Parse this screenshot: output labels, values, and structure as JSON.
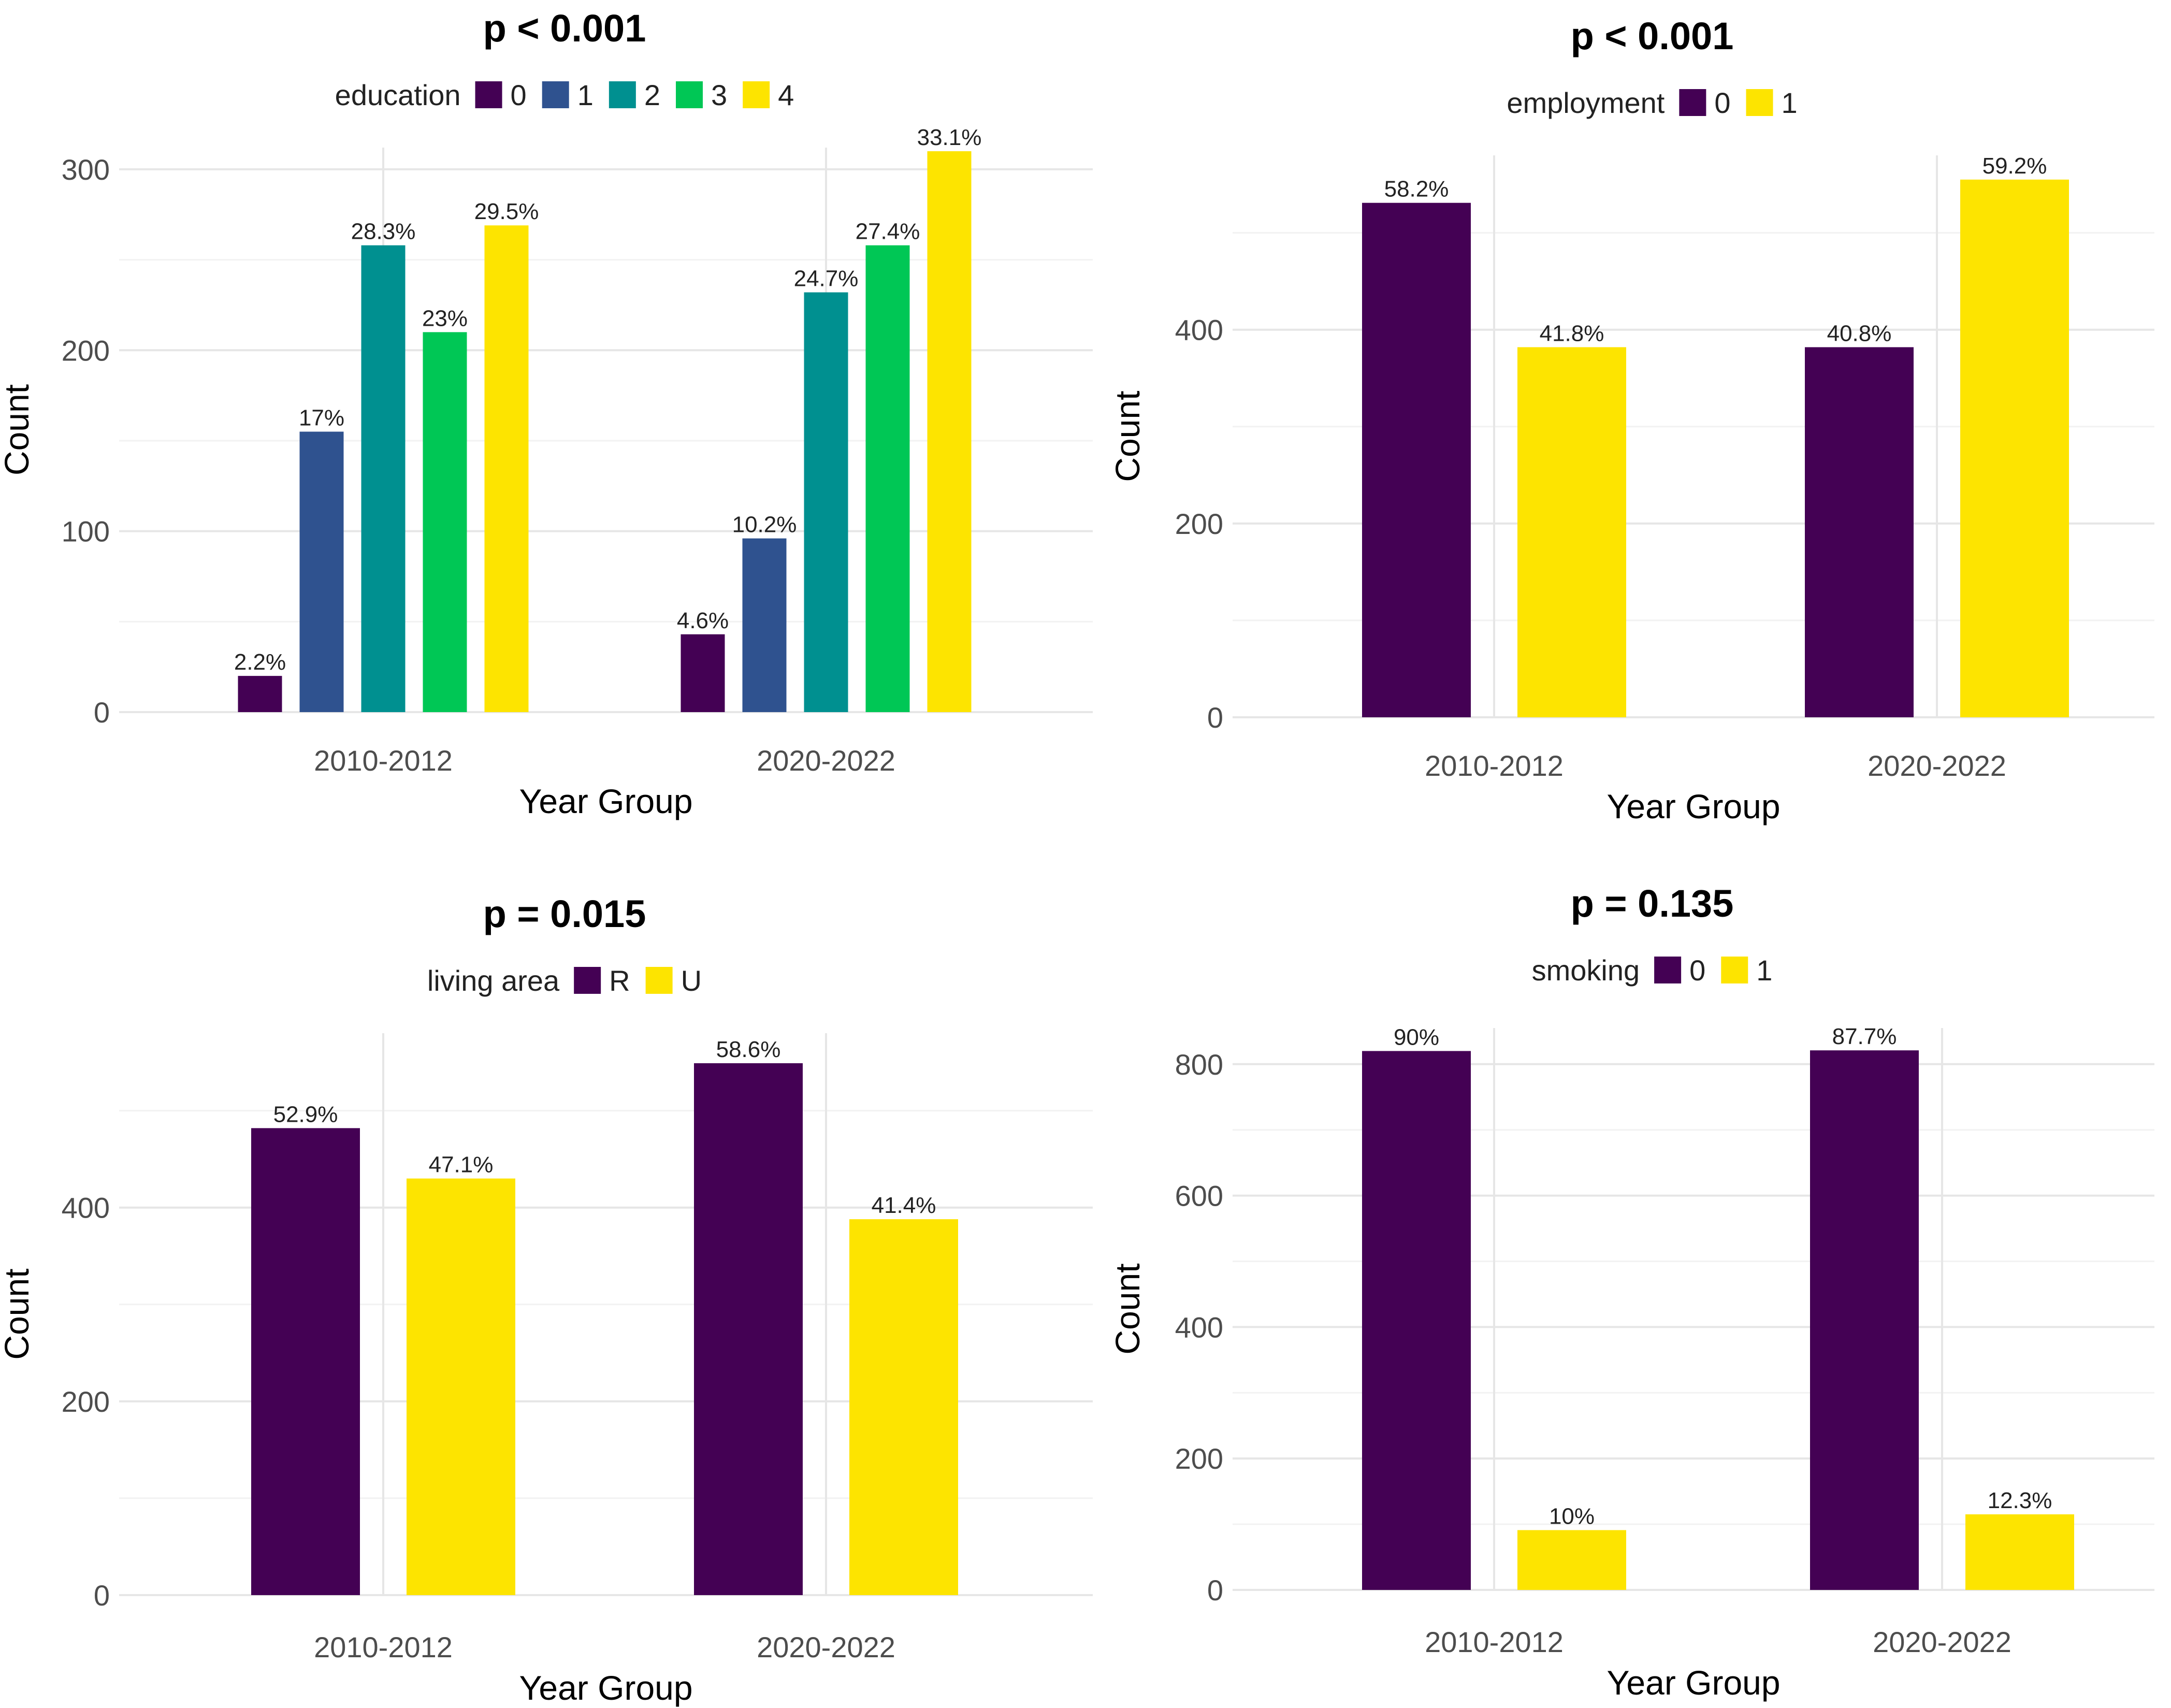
{
  "chart_data": [
    {
      "type": "bar",
      "title": "p < 0.001",
      "legend_title": "education",
      "legend_position": "top",
      "xlabel": "Year Group",
      "ylabel": "Count",
      "categories": [
        "2010-2012",
        "2020-2022"
      ],
      "ylim": [
        0,
        312
      ],
      "yticks": [
        0,
        100,
        200,
        300
      ],
      "grid": true,
      "series": [
        {
          "name": "0",
          "color": "#440154",
          "values": [
            20,
            43
          ],
          "labels": [
            "2.2%",
            "4.6%"
          ]
        },
        {
          "name": "1",
          "color": "#2f528f",
          "values": [
            155,
            96
          ],
          "labels": [
            "17%",
            "10.2%"
          ]
        },
        {
          "name": "2",
          "color": "#009090",
          "values": [
            258,
            232
          ],
          "labels": [
            "28.3%",
            "24.7%"
          ]
        },
        {
          "name": "3",
          "color": "#00c755",
          "values": [
            210,
            258
          ],
          "labels": [
            "23%",
            "27.4%"
          ]
        },
        {
          "name": "4",
          "color": "#fde400",
          "values": [
            269,
            310
          ],
          "labels": [
            "29.5%",
            "33.1%"
          ]
        }
      ]
    },
    {
      "type": "bar",
      "title": "p < 0.001",
      "legend_title": "employment",
      "legend_position": "top",
      "xlabel": "Year Group",
      "ylabel": "Count",
      "categories": [
        "2010-2012",
        "2020-2022"
      ],
      "ylim": [
        0,
        580
      ],
      "yticks": [
        0,
        200,
        400
      ],
      "grid": true,
      "series": [
        {
          "name": "0",
          "color": "#440154",
          "values": [
            531,
            382
          ],
          "labels": [
            "58.2%",
            "40.8%"
          ]
        },
        {
          "name": "1",
          "color": "#fde400",
          "values": [
            382,
            555
          ],
          "labels": [
            "41.8%",
            "59.2%"
          ]
        }
      ]
    },
    {
      "type": "bar",
      "title": "p = 0.015",
      "legend_title": "living area",
      "legend_position": "top",
      "xlabel": "Year Group",
      "ylabel": "Count",
      "categories": [
        "2010-2012",
        "2020-2022"
      ],
      "ylim": [
        0,
        580
      ],
      "yticks": [
        0,
        200,
        400
      ],
      "grid": true,
      "series": [
        {
          "name": "R",
          "color": "#440154",
          "values": [
            482,
            549
          ],
          "labels": [
            "52.9%",
            "58.6%"
          ]
        },
        {
          "name": "U",
          "color": "#fde400",
          "values": [
            430,
            388
          ],
          "labels": [
            "47.1%",
            "41.4%"
          ]
        }
      ]
    },
    {
      "type": "bar",
      "title": "p = 0.135",
      "legend_title": "smoking",
      "legend_position": "top",
      "xlabel": "Year Group",
      "ylabel": "Count",
      "categories": [
        "2010-2012",
        "2020-2022"
      ],
      "ylim": [
        0,
        855
      ],
      "yticks": [
        0,
        200,
        400,
        600,
        800
      ],
      "grid": true,
      "series": [
        {
          "name": "0",
          "color": "#440154",
          "values": [
            820,
            821
          ],
          "labels": [
            "90%",
            "87.7%"
          ]
        },
        {
          "name": "1",
          "color": "#fde400",
          "values": [
            91,
            115
          ],
          "labels": [
            "10%",
            "12.3%"
          ]
        }
      ]
    }
  ]
}
